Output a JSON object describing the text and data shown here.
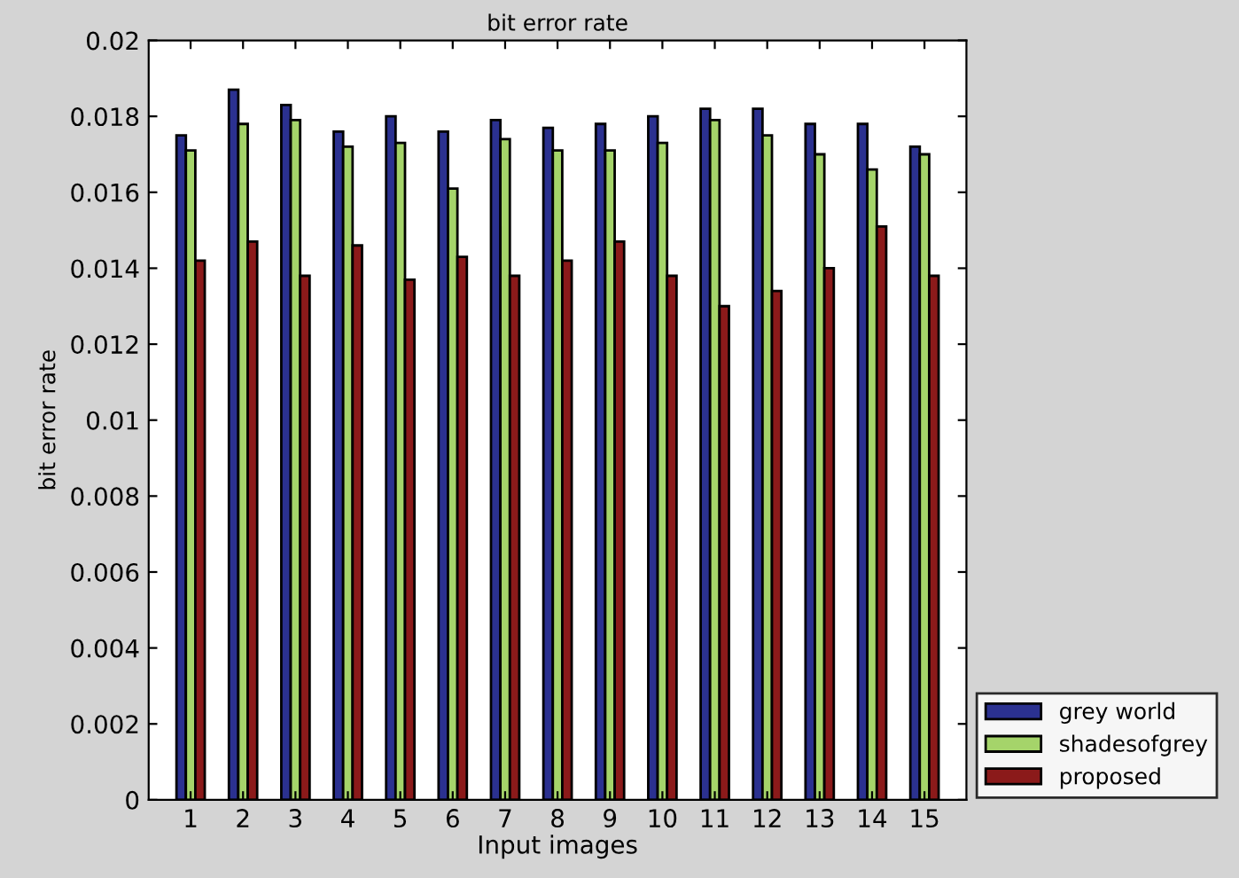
{
  "chart_data": {
    "type": "bar",
    "title": "bit error rate",
    "xlabel": "Input images",
    "ylabel": "bit error rate",
    "categories": [
      "1",
      "2",
      "3",
      "4",
      "5",
      "6",
      "7",
      "8",
      "9",
      "10",
      "11",
      "12",
      "13",
      "14",
      "15"
    ],
    "series": [
      {
        "name": "grey world",
        "color": "#2b3190",
        "values": [
          0.0175,
          0.0187,
          0.0183,
          0.0176,
          0.018,
          0.0176,
          0.0179,
          0.0177,
          0.0178,
          0.018,
          0.0182,
          0.0182,
          0.0178,
          0.0178,
          0.0172
        ]
      },
      {
        "name": "shadesofgrey",
        "color": "#a5d46a",
        "values": [
          0.0171,
          0.0178,
          0.0179,
          0.0172,
          0.0173,
          0.0161,
          0.0174,
          0.0171,
          0.0171,
          0.0173,
          0.0179,
          0.0175,
          0.017,
          0.0166,
          0.017
        ]
      },
      {
        "name": "proposed",
        "color": "#8b1a1a",
        "values": [
          0.0142,
          0.0147,
          0.0138,
          0.0146,
          0.0137,
          0.0143,
          0.0138,
          0.0142,
          0.0147,
          0.0138,
          0.013,
          0.0134,
          0.014,
          0.0151,
          0.0138
        ]
      }
    ],
    "ylim": [
      0,
      0.02
    ],
    "yticks": [
      0,
      0.002,
      0.004,
      0.006,
      0.008,
      0.01,
      0.012,
      0.014,
      0.016,
      0.018,
      0.02
    ],
    "grid": false,
    "legend": "right"
  }
}
